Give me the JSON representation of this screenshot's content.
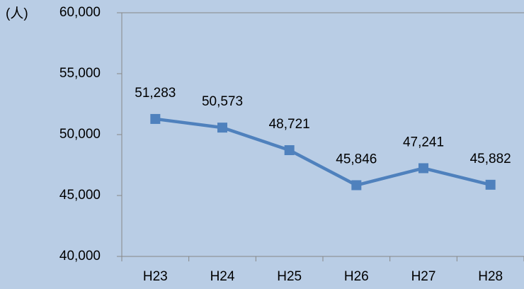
{
  "chart_data": {
    "type": "line",
    "y_label": "(人)",
    "categories": [
      "H23",
      "H24",
      "H25",
      "H26",
      "H27",
      "H28"
    ],
    "series": [
      {
        "name": null,
        "color": "#4f81bd",
        "values": [
          51283,
          50573,
          48721,
          45846,
          47241,
          45882
        ],
        "value_labels": [
          "51,283",
          "50,573",
          "48,721",
          "45,846",
          "47,241",
          "45,882"
        ]
      }
    ],
    "ylim": [
      40000,
      60000
    ],
    "yticks": [
      {
        "value": 40000,
        "label": "40,000"
      },
      {
        "value": 45000,
        "label": "45,000"
      },
      {
        "value": 50000,
        "label": "50,000"
      },
      {
        "value": 55000,
        "label": "55,000"
      },
      {
        "value": 60000,
        "label": "60,000"
      }
    ],
    "grid": false
  }
}
